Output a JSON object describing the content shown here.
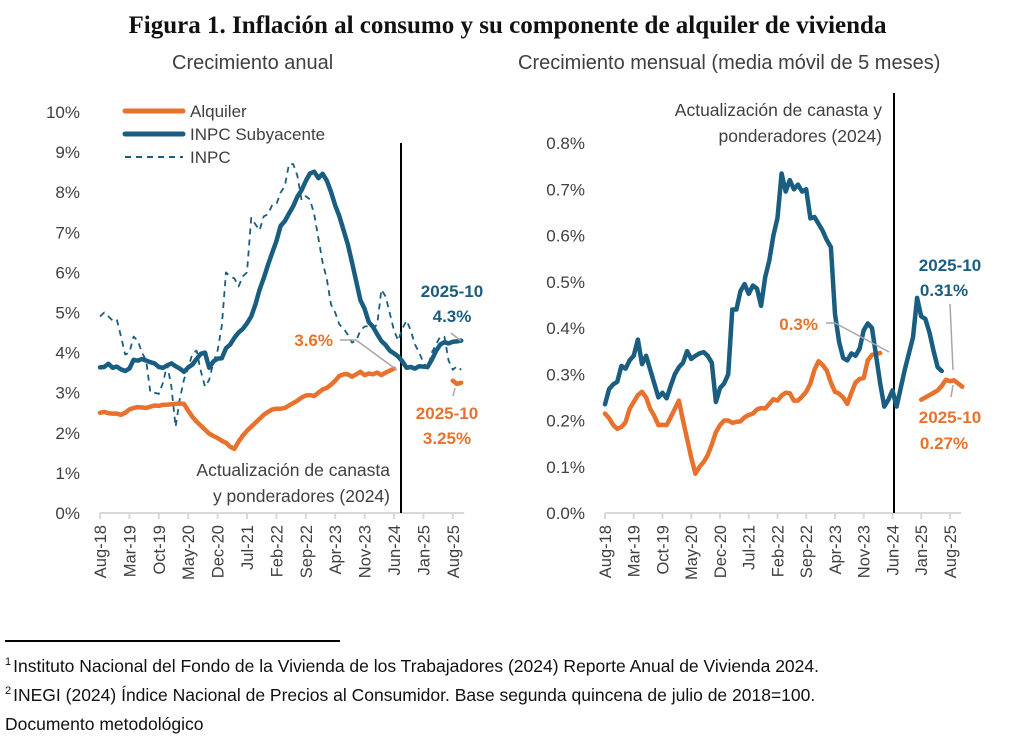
{
  "title": "Figura 1. Inflación al consumo y su componente de alquiler de vivienda",
  "colors": {
    "alquiler": "#E8722D",
    "subyacente": "#195E80",
    "inpc": "#195E80",
    "axis_text": "#404040",
    "leader": "#A6A6A6",
    "vline": "#000000"
  },
  "footnotes": {
    "line1_num": "1",
    "line1": "Instituto Nacional del Fondo de la Vivienda de los Trabajadores (2024) Reporte Anual de Vivienda 2024.",
    "line2_num": "2",
    "line2": "INEGI (2024) Índice Nacional de Precios al Consumidor. Base segunda quincena de julio de 2018=100.",
    "line3": "Documento metodológico"
  },
  "chart_data": [
    {
      "type": "line",
      "title": "Crecimiento anual",
      "xlabel": "",
      "ylabel": "",
      "x_start": "2018-08",
      "x_end": "2025-10",
      "x_ticks": [
        "Aug-18",
        "Mar-19",
        "Oct-19",
        "May-20",
        "Dec-20",
        "Jul-21",
        "Feb-22",
        "Sep-22",
        "Apr-23",
        "Nov-23",
        "Jun-24",
        "Jan-25",
        "Aug-25"
      ],
      "y_ticks": [
        "0%",
        "1%",
        "2%",
        "3%",
        "4%",
        "5%",
        "6%",
        "7%",
        "8%",
        "9%",
        "10%"
      ],
      "ylim": [
        0,
        10
      ],
      "grid": false,
      "legend": {
        "placement": "top-left",
        "entries": [
          "Alquiler",
          "INPC Subyacente",
          "INPC"
        ]
      },
      "vline": {
        "at": "2024-07",
        "label_line1": "Actualización de canasta",
        "label_line2": "y ponderadores (2024)"
      },
      "series": [
        {
          "name": "Alquiler",
          "style": "solid-thick",
          "segments": [
            [
              2.5,
              2.52,
              2.49,
              2.48,
              2.48,
              2.45,
              2.5,
              2.58,
              2.62,
              2.64,
              2.63,
              2.62,
              2.65,
              2.68,
              2.67,
              2.7,
              2.7,
              2.71,
              2.72,
              2.73,
              2.72,
              2.55,
              2.4,
              2.28,
              2.18,
              2.08,
              1.98,
              1.92,
              1.87,
              1.8,
              1.75,
              1.65,
              1.6,
              1.78,
              1.93,
              2.05,
              2.15,
              2.25,
              2.35,
              2.45,
              2.52,
              2.58,
              2.6,
              2.6,
              2.62,
              2.68,
              2.74,
              2.8,
              2.88,
              2.93,
              2.94,
              2.92,
              3.0,
              3.08,
              3.12,
              3.2,
              3.3,
              3.42,
              3.46,
              3.46,
              3.4,
              3.46,
              3.52,
              3.44,
              3.48,
              3.46,
              3.5,
              3.44,
              3.5,
              3.55,
              3.6
            ],
            {
              "start_index": 84,
              "values": [
                3.3,
                3.22,
                3.25
              ]
            }
          ]
        },
        {
          "name": "INPC Subyacente",
          "style": "solid-thick",
          "segments": [
            [
              3.63,
              3.64,
              3.72,
              3.62,
              3.65,
              3.58,
              3.54,
              3.6,
              3.82,
              3.8,
              3.84,
              3.8,
              3.76,
              3.73,
              3.64,
              3.62,
              3.68,
              3.73,
              3.66,
              3.6,
              3.52,
              3.63,
              3.7,
              3.84,
              3.97,
              4.0,
              3.62,
              3.78,
              3.85,
              3.86,
              4.11,
              4.2,
              4.37,
              4.5,
              4.59,
              4.73,
              4.9,
              5.2,
              5.57,
              5.86,
              6.19,
              6.49,
              6.78,
              7.16,
              7.28,
              7.47,
              7.65,
              7.89,
              8.05,
              8.28,
              8.47,
              8.51,
              8.35,
              8.46,
              8.29,
              8.01,
              7.67,
              7.4,
              7.05,
              6.7,
              6.25,
              5.78,
              5.31,
              5.09,
              4.76,
              4.64,
              4.46,
              4.29,
              4.19,
              4.05,
              3.98,
              3.9,
              3.78,
              3.62,
              3.64,
              3.6,
              3.66,
              3.65,
              3.64,
              3.82,
              4.04,
              4.2,
              4.26,
              4.23,
              4.27,
              4.28,
              4.3
            ]
          ]
        },
        {
          "name": "INPC",
          "style": "dashed",
          "segments": [
            [
              4.9,
              5.0,
              4.9,
              4.8,
              4.83,
              4.4,
              3.95,
              4.0,
              4.4,
              4.3,
              4.0,
              3.8,
              3.0,
              3.0,
              2.97,
              3.25,
              3.7,
              3.15,
              2.15,
              2.84,
              3.33,
              3.62,
              3.97,
              4.05,
              3.54,
              3.15,
              3.32,
              3.76,
              4.05,
              4.67,
              6.0,
              5.9,
              5.85,
              5.65,
              5.9,
              6.0,
              7.36,
              7.2,
              7.05,
              7.4,
              7.45,
              7.68,
              7.7,
              7.99,
              8.15,
              8.7,
              8.7,
              8.41,
              7.8,
              7.9,
              7.82,
              7.45,
              6.85,
              6.25,
              5.84,
              5.2,
              5.0,
              4.7,
              4.6,
              4.45,
              4.25,
              4.3,
              4.55,
              4.65,
              4.66,
              4.6,
              4.7,
              5.57,
              5.4,
              4.98,
              4.55,
              4.3,
              4.6,
              4.8,
              4.55,
              4.2,
              4.0,
              3.75,
              3.6,
              4.0,
              4.2,
              4.4,
              4.4,
              3.8,
              3.57,
              3.66,
              3.57
            ]
          ]
        }
      ],
      "annotations": [
        {
          "text": "3.6%",
          "series": "Alquiler",
          "at": "2024-06",
          "value": 3.6
        },
        {
          "text_line1": "2025-10",
          "text_line2": "4.3%",
          "series": "INPC Subyacente",
          "at": "2025-10",
          "value": 4.3
        },
        {
          "text_line1": "2025-10",
          "text_line2": "3.25%",
          "series": "Alquiler",
          "at": "2025-10",
          "value": 3.25
        }
      ]
    },
    {
      "type": "line",
      "title": "Crecimiento mensual (media móvil de 5 meses)",
      "xlabel": "",
      "ylabel": "",
      "x_start": "2018-08",
      "x_end": "2025-10",
      "x_ticks": [
        "Aug-18",
        "Mar-19",
        "Oct-19",
        "May-20",
        "Dec-20",
        "Jul-21",
        "Feb-22",
        "Sep-22",
        "Apr-23",
        "Nov-23",
        "Jun-24",
        "Jan-25",
        "Aug-25"
      ],
      "y_ticks": [
        "0.0%",
        "0.1%",
        "0.2%",
        "0.3%",
        "0.4%",
        "0.5%",
        "0.6%",
        "0.7%",
        "0.8%"
      ],
      "ylim": [
        0,
        0.8
      ],
      "grid": false,
      "vline": {
        "at": "2024-06",
        "label_line1": "Actualización de canasta y",
        "label_line2": "ponderadores (2024)"
      },
      "series": [
        {
          "name": "Alquiler",
          "style": "solid-thick",
          "segments": [
            [
              0.215,
              0.205,
              0.19,
              0.182,
              0.186,
              0.196,
              0.225,
              0.24,
              0.255,
              0.262,
              0.25,
              0.225,
              0.21,
              0.19,
              0.191,
              0.19,
              0.207,
              0.225,
              0.243,
              0.2,
              0.16,
              0.12,
              0.085,
              0.1,
              0.11,
              0.125,
              0.148,
              0.175,
              0.19,
              0.2,
              0.2,
              0.195,
              0.197,
              0.198,
              0.207,
              0.212,
              0.215,
              0.224,
              0.227,
              0.226,
              0.236,
              0.246,
              0.243,
              0.254,
              0.26,
              0.259,
              0.243,
              0.243,
              0.252,
              0.262,
              0.28,
              0.31,
              0.328,
              0.32,
              0.308,
              0.282,
              0.262,
              0.258,
              0.25,
              0.236,
              0.26,
              0.282,
              0.29,
              0.292,
              0.33,
              0.342,
              0.344,
              0.346
            ],
            {
              "start_index": 77,
              "values": [
                0.245,
                0.25,
                0.255,
                0.26,
                0.265,
                0.275,
                0.288,
                0.285,
                0.287,
                0.28,
                0.273
              ]
            }
          ]
        },
        {
          "name": "INPC Subyacente",
          "style": "solid-thick",
          "segments": [
            [
              0.235,
              0.268,
              0.278,
              0.284,
              0.318,
              0.312,
              0.33,
              0.34,
              0.375,
              0.322,
              0.34,
              0.31,
              0.28,
              0.25,
              0.26,
              0.248,
              0.275,
              0.3,
              0.315,
              0.325,
              0.35,
              0.333,
              0.34,
              0.345,
              0.348,
              0.34,
              0.325,
              0.24,
              0.27,
              0.28,
              0.3,
              0.44,
              0.44,
              0.48,
              0.495,
              0.474,
              0.492,
              0.485,
              0.448,
              0.51,
              0.546,
              0.6,
              0.638,
              0.734,
              0.695,
              0.72,
              0.7,
              0.71,
              0.695,
              0.7,
              0.637,
              0.64,
              0.625,
              0.61,
              0.59,
              0.575,
              0.43,
              0.37,
              0.335,
              0.33,
              0.345,
              0.34,
              0.355,
              0.395,
              0.41,
              0.4,
              0.34,
              0.28,
              0.23,
              0.245,
              0.265,
              0.23,
              0.27,
              0.31,
              0.345,
              0.38,
              0.465,
              0.425,
              0.42,
              0.39,
              0.35,
              0.315,
              0.307
            ]
          ]
        }
      ],
      "annotations": [
        {
          "text": "0.3%",
          "series": "Alquiler",
          "at": "2024-03",
          "value": 0.346
        },
        {
          "text_line1": "2025-10",
          "text_line2": "0.31%",
          "series": "INPC Subyacente",
          "at": "2025-10",
          "value": 0.31
        },
        {
          "text_line1": "2025-10",
          "text_line2": "0.27%",
          "series": "Alquiler",
          "at": "2025-10",
          "value": 0.27
        }
      ]
    }
  ]
}
